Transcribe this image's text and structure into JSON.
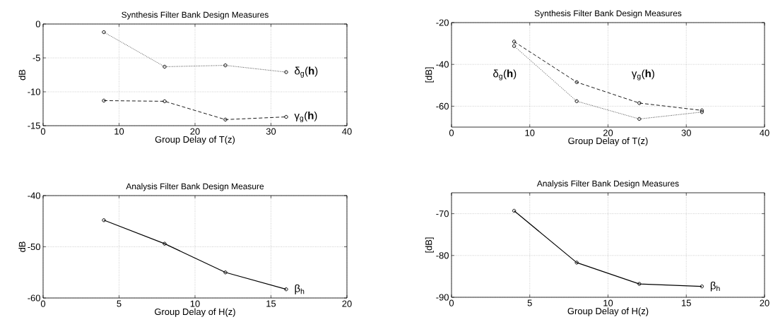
{
  "chart_data": [
    {
      "type": "line",
      "title": "Synthesis Filter Bank Design Measures",
      "xlabel": "Group Delay of T(z)",
      "ylabel": "dB",
      "xlim": [
        0,
        40
      ],
      "xticks": [
        0,
        10,
        20,
        30,
        40
      ],
      "ylim": [
        -15,
        0
      ],
      "yticks": [
        -15,
        -10,
        -5,
        0
      ],
      "grid": true,
      "marker": "circle",
      "x": [
        8,
        16,
        24,
        32
      ],
      "series": [
        {
          "name": "δ$_{g}$(**h**)",
          "color": "#000000",
          "line_style": "dotted",
          "values": [
            -1.2,
            -6.3,
            -6.1,
            -7.1
          ]
        },
        {
          "name": "γ$_{g}$(**h**)",
          "color": "#000000",
          "line_style": "dashed",
          "values": [
            -11.3,
            -11.4,
            -14.1,
            -13.7
          ]
        }
      ]
    },
    {
      "type": "line",
      "title": "Synthesis Filter Bank Design Measures",
      "xlabel": "Group Delay of T(z)",
      "ylabel": "[dB]",
      "xlim": [
        0,
        40
      ],
      "xticks": [
        0,
        10,
        20,
        30,
        40
      ],
      "ylim": [
        -70,
        -20
      ],
      "yticks": [
        -60,
        -40,
        -20
      ],
      "grid": true,
      "marker": "circle",
      "x": [
        8,
        16,
        24,
        32
      ],
      "series": [
        {
          "name": "δ$_{g}$(**h**)",
          "color": "#000000",
          "line_style": "dotted",
          "values": [
            -31.2,
            -57.6,
            -66.1,
            -62.8
          ]
        },
        {
          "name": "γ$_{g}$(**h**)",
          "color": "#000000",
          "line_style": "dashed",
          "values": [
            -29.1,
            -48.5,
            -58.5,
            -62.0
          ]
        }
      ]
    },
    {
      "type": "line",
      "title": "Analysis Filter Bank Design Measure",
      "xlabel": "Group Delay of H(z)",
      "ylabel": "dB",
      "xlim": [
        0,
        20
      ],
      "xticks": [
        0,
        5,
        10,
        15,
        20
      ],
      "ylim": [
        -60,
        -40
      ],
      "yticks": [
        -60,
        -50,
        -40
      ],
      "grid": true,
      "marker": "circle",
      "x": [
        4,
        8,
        12,
        16
      ],
      "series": [
        {
          "name": "β$_{h}$",
          "color": "#000000",
          "line_style": "solid",
          "values": [
            -44.8,
            -49.4,
            -55.0,
            -58.3
          ]
        }
      ]
    },
    {
      "type": "line",
      "title": "Analysis Filter Bank Design Measures",
      "xlabel": "Group Delay of H(z)",
      "ylabel": "[dB]",
      "xlim": [
        0,
        20
      ],
      "xticks": [
        0,
        5,
        10,
        15,
        20
      ],
      "ylim": [
        -90,
        -65
      ],
      "yticks": [
        -90,
        -80,
        -70
      ],
      "grid": true,
      "marker": "circle",
      "x": [
        4,
        8,
        12,
        16
      ],
      "series": [
        {
          "name": "β$_{h}$",
          "color": "#000000",
          "line_style": "solid",
          "values": [
            -69.3,
            -81.7,
            -86.8,
            -87.4
          ]
        }
      ]
    }
  ]
}
